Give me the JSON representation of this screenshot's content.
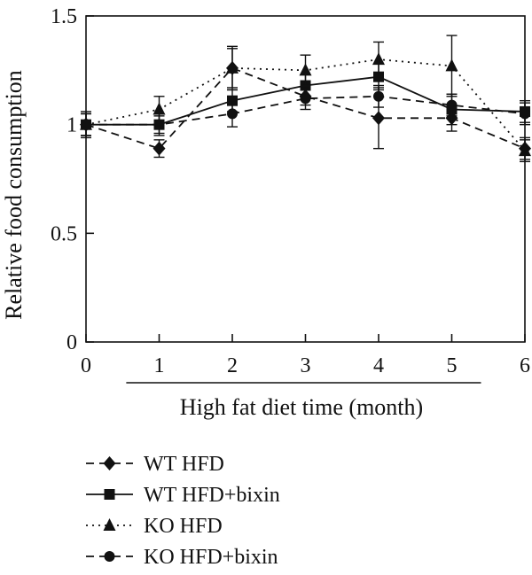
{
  "chart_data": {
    "type": "line",
    "title": "",
    "xlabel": "High fat diet time (month)",
    "ylabel": "Relative food consumption",
    "x": [
      0,
      1,
      2,
      3,
      4,
      5,
      6
    ],
    "xlim": [
      0,
      6
    ],
    "ylim": [
      0,
      1.5
    ],
    "xticks": [
      "0",
      "1",
      "2",
      "3",
      "4",
      "5",
      "6"
    ],
    "yticks": [
      "0",
      "0.5",
      "1",
      "1.5"
    ],
    "grid": false,
    "legend_position": "bottom-left",
    "series": [
      {
        "name": "WT HFD",
        "marker": "diamond",
        "line_style": "dashed",
        "values": [
          1.0,
          0.89,
          1.26,
          1.13,
          1.03,
          1.03,
          0.89
        ],
        "errors": [
          0.05,
          0.04,
          0.1,
          0.04,
          0.14,
          0.06,
          0.05
        ]
      },
      {
        "name": "WT HFD+bixin",
        "marker": "square",
        "line_style": "solid",
        "values": [
          1.0,
          1.0,
          1.11,
          1.18,
          1.22,
          1.07,
          1.06
        ],
        "errors": [
          0.06,
          0.05,
          0.05,
          0.05,
          0.06,
          0.07,
          0.05
        ]
      },
      {
        "name": "KO HFD",
        "marker": "triangle",
        "line_style": "dotted",
        "values": [
          1.0,
          1.07,
          1.26,
          1.25,
          1.3,
          1.27,
          0.88
        ],
        "errors": [
          0.05,
          0.06,
          0.09,
          0.07,
          0.08,
          0.14,
          0.05
        ]
      },
      {
        "name": "KO HFD+bixin",
        "marker": "circle",
        "line_style": "dashed",
        "values": [
          1.0,
          1.0,
          1.05,
          1.12,
          1.13,
          1.09,
          1.05
        ],
        "errors": [
          0.05,
          0.04,
          0.06,
          0.05,
          0.05,
          0.05,
          0.05
        ]
      }
    ]
  }
}
